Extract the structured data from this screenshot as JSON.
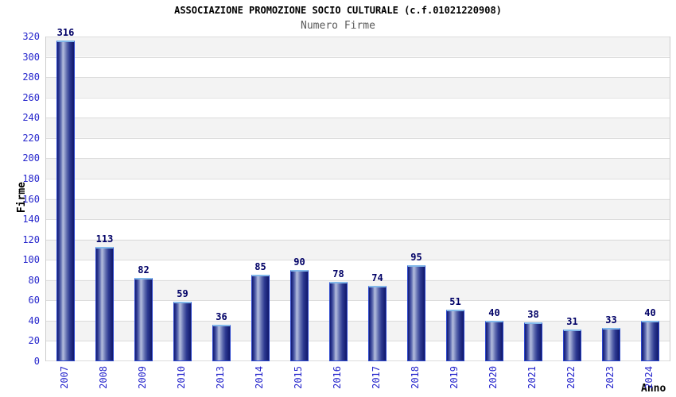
{
  "title": "ASSOCIAZIONE PROMOZIONE SOCIO CULTURALE (c.f.01021220908)",
  "subtitle": "Numero Firme",
  "chart_data": {
    "type": "bar",
    "title": "ASSOCIAZIONE PROMOZIONE SOCIO CULTURALE (c.f.01021220908)",
    "subtitle": "Numero Firme",
    "xlabel": "Anno",
    "ylabel": "Firme",
    "categories": [
      "2007",
      "2008",
      "2009",
      "2010",
      "2013",
      "2014",
      "2015",
      "2016",
      "2017",
      "2018",
      "2019",
      "2020",
      "2021",
      "2022",
      "2023",
      "2024"
    ],
    "values": [
      316,
      113,
      82,
      59,
      36,
      85,
      90,
      78,
      74,
      95,
      51,
      40,
      38,
      31,
      33,
      40
    ],
    "ylim": [
      0,
      320
    ],
    "yticks": [
      0,
      20,
      40,
      60,
      80,
      100,
      120,
      140,
      160,
      180,
      200,
      220,
      240,
      260,
      280,
      300,
      320
    ],
    "grid": "horizontal-bands",
    "legend_position": "none",
    "colors": {
      "tick_label": "#2525cc",
      "value_label": "#000066",
      "bar_border": "#2b46cc",
      "bar_cap": "#82b8ea",
      "bar_dark": "#141c72",
      "bar_light": "#b3bcdc",
      "band_gray": "#f3f3f3",
      "band_white": "#ffffff",
      "gridline": "#dcdcdc",
      "subtitle_text": "#5a5a5a"
    }
  }
}
